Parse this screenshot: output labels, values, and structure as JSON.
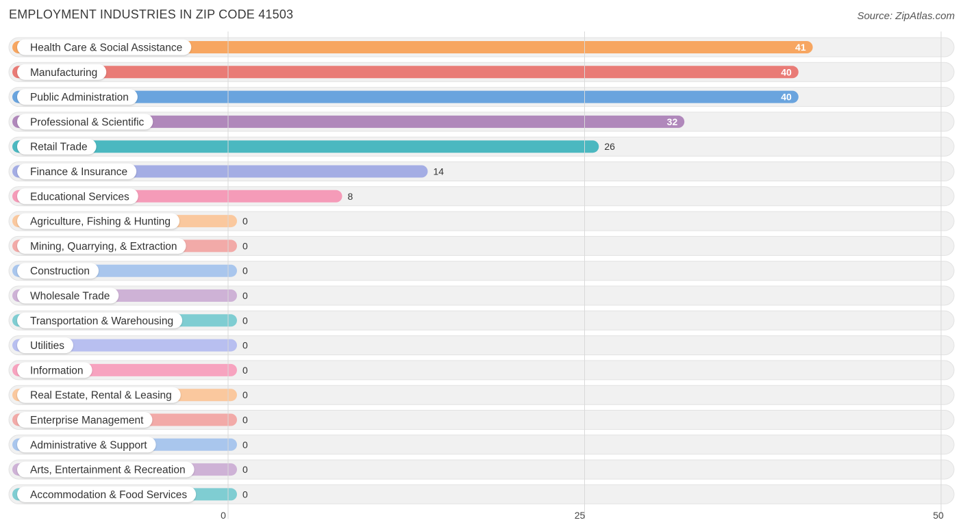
{
  "title": "EMPLOYMENT INDUSTRIES IN ZIP CODE 41503",
  "source": "Source: ZipAtlas.com",
  "chart_data": {
    "type": "bar",
    "orientation": "horizontal",
    "title": "EMPLOYMENT INDUSTRIES IN ZIP CODE 41503",
    "xlim": [
      0,
      50
    ],
    "xticks": [
      0,
      25,
      50
    ],
    "grid": true,
    "categories": [
      "Health Care & Social Assistance",
      "Manufacturing",
      "Public Administration",
      "Professional & Scientific",
      "Retail Trade",
      "Finance & Insurance",
      "Educational Services",
      "Agriculture, Fishing & Hunting",
      "Mining, Quarrying, & Extraction",
      "Construction",
      "Wholesale Trade",
      "Transportation & Warehousing",
      "Utilities",
      "Information",
      "Real Estate, Rental & Leasing",
      "Enterprise Management",
      "Administrative & Support",
      "Arts, Entertainment & Recreation",
      "Accommodation & Food Services"
    ],
    "values": [
      41,
      40,
      40,
      32,
      26,
      14,
      8,
      0,
      0,
      0,
      0,
      0,
      0,
      0,
      0,
      0,
      0,
      0,
      0
    ],
    "colors": [
      "#f7a661",
      "#e97b76",
      "#6aa4de",
      "#b088bb",
      "#4bb8c0",
      "#a4ade4",
      "#f59bb8",
      "#fac89e",
      "#f2aaa8",
      "#a9c6ed",
      "#ceb2d6",
      "#7fcdd2",
      "#b8bff0",
      "#f7a3bf",
      "#fac89e",
      "#f2aaa8",
      "#a9c6ed",
      "#ceb2d6",
      "#7fcdd2"
    ]
  }
}
